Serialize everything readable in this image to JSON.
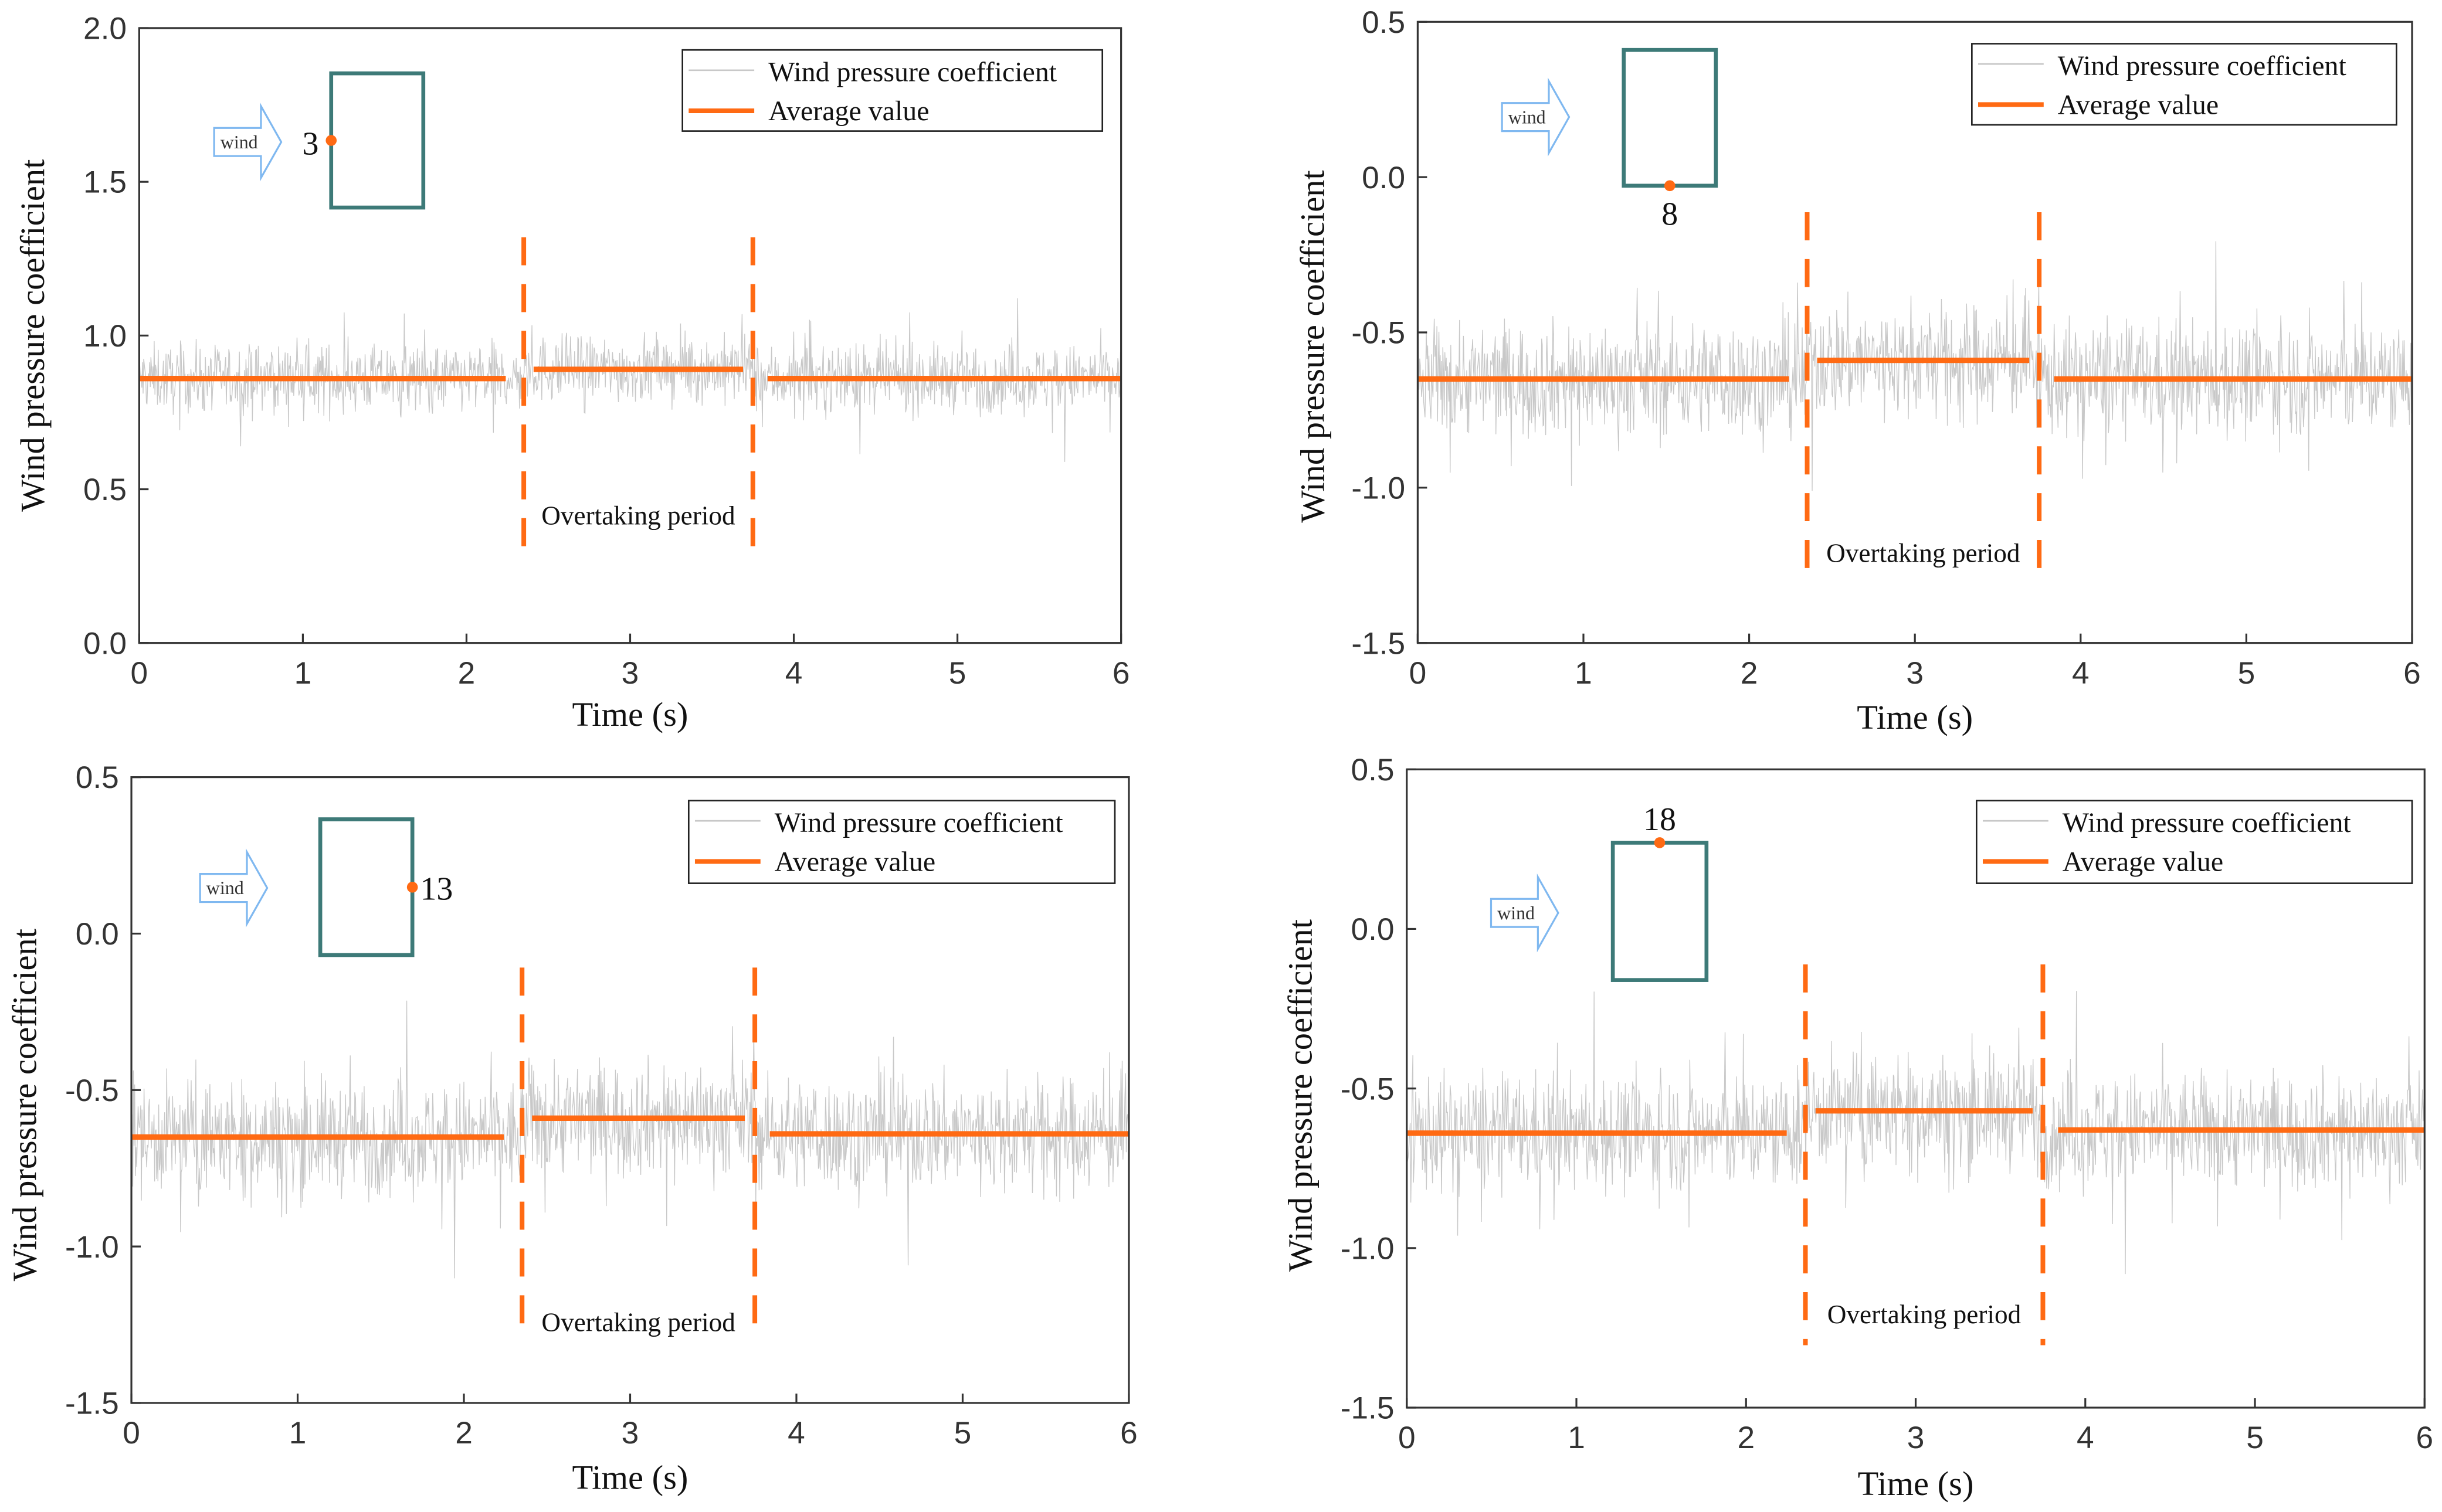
{
  "colors": {
    "signal": "#c8c8c8",
    "average": "#ff6a13",
    "building": "#3d7a78",
    "wind_arrow": "#7fb8f0",
    "axis": "#333333"
  },
  "chart_data": [
    {
      "type": "line",
      "measuring_point": "3",
      "xlabel": "Time (s)",
      "ylabel": "Wind pressure coefficient",
      "xlim": [
        0,
        6
      ],
      "ylim": [
        0,
        2
      ],
      "xticks": [
        "0",
        "1",
        "2",
        "3",
        "4",
        "5",
        "6"
      ],
      "yticks": [
        "0.0",
        "0.5",
        "1.0",
        "1.5",
        "2.0"
      ],
      "legend": [
        "Wind pressure coefficient",
        "Average value"
      ],
      "legend_position": "top-right",
      "overtaking_bounds": [
        2.35,
        3.75
      ],
      "annotation": "Overtaking period",
      "wind_label": "wind",
      "point_side": "left",
      "signal": {
        "mean": [
          0.86,
          0.89,
          0.86
        ],
        "spread": 0.12
      },
      "average_segments": [
        {
          "x": [
            0,
            2.24
          ],
          "y": 0.86
        },
        {
          "x": [
            2.41,
            3.69
          ],
          "y": 0.89
        },
        {
          "x": [
            3.84,
            6
          ],
          "y": 0.86
        }
      ]
    },
    {
      "type": "line",
      "measuring_point": "8",
      "xlabel": "Time (s)",
      "ylabel": "Wind pressure coefficient",
      "xlim": [
        0,
        6
      ],
      "ylim": [
        -1.5,
        0.5
      ],
      "xticks": [
        "0",
        "1",
        "2",
        "3",
        "4",
        "5",
        "6"
      ],
      "yticks": [
        "-1.5",
        "-1.0",
        "-0.5",
        "0.0",
        "0.5"
      ],
      "legend": [
        "Wind pressure coefficient",
        "Average value"
      ],
      "legend_position": "top-right",
      "overtaking_bounds": [
        2.35,
        3.75
      ],
      "annotation": "Overtaking period",
      "wind_label": "wind",
      "point_side": "bottom",
      "signal": {
        "mean": [
          -0.65,
          -0.59,
          -0.65
        ],
        "spread": 0.2
      },
      "average_segments": [
        {
          "x": [
            0,
            2.24
          ],
          "y": -0.65
        },
        {
          "x": [
            2.41,
            3.69
          ],
          "y": -0.59
        },
        {
          "x": [
            3.84,
            6
          ],
          "y": -0.65
        }
      ]
    },
    {
      "type": "line",
      "measuring_point": "13",
      "xlabel": "Time (s)",
      "ylabel": "Wind pressure coefficient",
      "xlim": [
        0,
        6
      ],
      "ylim": [
        -1.5,
        0.5
      ],
      "xticks": [
        "0",
        "1",
        "2",
        "3",
        "4",
        "5",
        "6"
      ],
      "yticks": [
        "-1.5",
        "-1.0",
        "-0.5",
        "0.0",
        "0.5"
      ],
      "legend": [
        "Wind pressure coefficient",
        "Average value"
      ],
      "legend_position": "top-right",
      "overtaking_bounds": [
        2.35,
        3.75
      ],
      "annotation": "Overtaking period",
      "wind_label": "wind",
      "point_side": "right",
      "signal": {
        "mean": [
          -0.65,
          -0.59,
          -0.64
        ],
        "spread": 0.2
      },
      "average_segments": [
        {
          "x": [
            0,
            2.24
          ],
          "y": -0.65
        },
        {
          "x": [
            2.41,
            3.69
          ],
          "y": -0.59
        },
        {
          "x": [
            3.84,
            6
          ],
          "y": -0.64
        }
      ]
    },
    {
      "type": "line",
      "measuring_point": "18",
      "xlabel": "Time (s)",
      "ylabel": "Wind pressure coefficient",
      "xlim": [
        0,
        6
      ],
      "ylim": [
        -1.5,
        0.5
      ],
      "xticks": [
        "0",
        "1",
        "2",
        "3",
        "4",
        "5",
        "6"
      ],
      "yticks": [
        "-1.5",
        "-1.0",
        "-0.5",
        "0.0",
        "0.5"
      ],
      "legend": [
        "Wind pressure coefficient",
        "Average value"
      ],
      "legend_position": "top-right",
      "overtaking_bounds": [
        2.35,
        3.75
      ],
      "annotation": "Overtaking period",
      "wind_label": "wind",
      "point_side": "top",
      "signal": {
        "mean": [
          -0.64,
          -0.57,
          -0.63
        ],
        "spread": 0.2
      },
      "average_segments": [
        {
          "x": [
            0,
            2.24
          ],
          "y": -0.64
        },
        {
          "x": [
            2.41,
            3.69
          ],
          "y": -0.57
        },
        {
          "x": [
            3.84,
            6
          ],
          "y": -0.63
        }
      ]
    }
  ]
}
